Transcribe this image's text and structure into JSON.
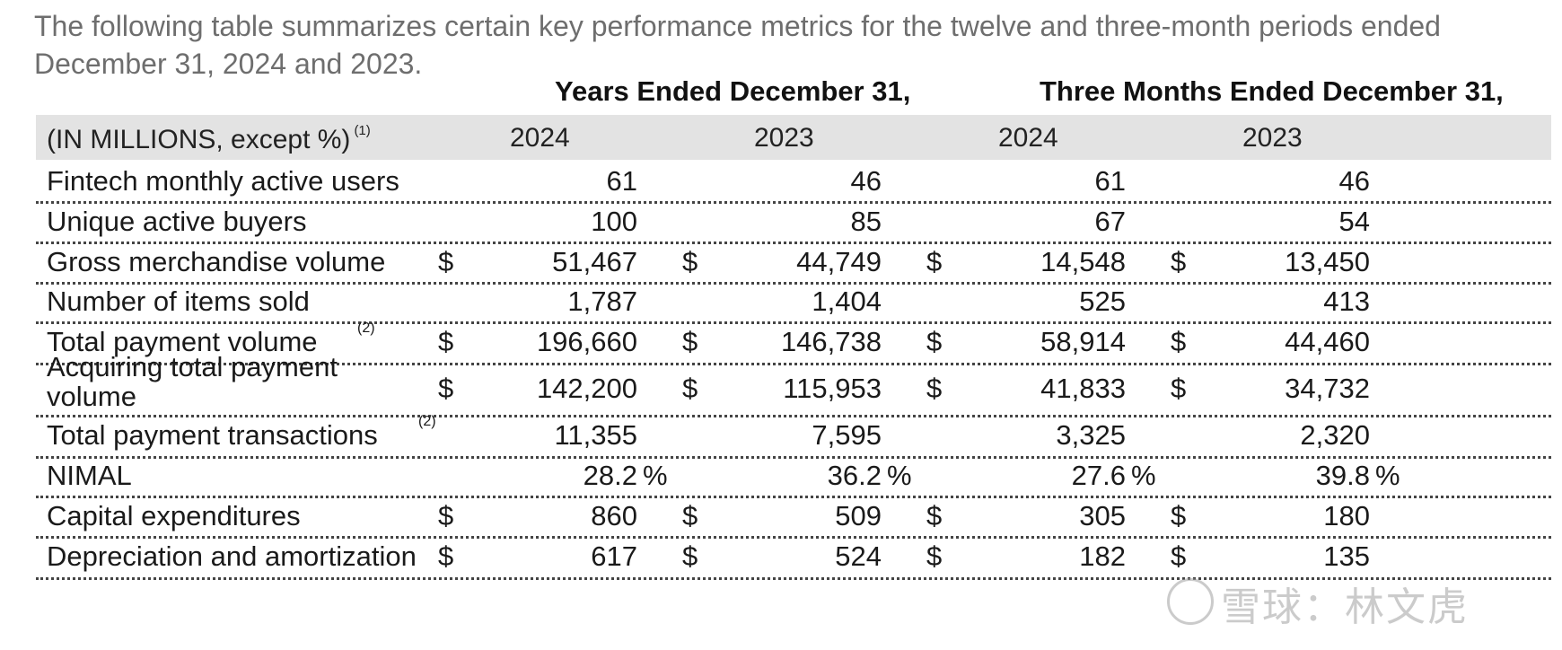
{
  "intro": "The following table summarizes certain key performance metrics for the twelve and three-month periods ended December 31, 2024 and 2023.",
  "headers": {
    "years": "Years Ended December 31,",
    "three_months": "Three Months Ended December 31,"
  },
  "columns": {
    "label": "(IN MILLIONS, except %)",
    "label_note": "(1)",
    "years": [
      "2024",
      "2023",
      "2024",
      "2023"
    ]
  },
  "rows": [
    {
      "label": "Fintech monthly active users",
      "note": "",
      "currency": false,
      "values": [
        "61",
        "46",
        "61",
        "46"
      ]
    },
    {
      "label": "Unique active buyers",
      "note": "",
      "currency": false,
      "values": [
        "100",
        "85",
        "67",
        "54"
      ]
    },
    {
      "label": "Gross merchandise volume",
      "note": "",
      "currency": true,
      "values": [
        "51,467",
        "44,749",
        "14,548",
        "13,450"
      ]
    },
    {
      "label": "Number of items sold",
      "note": "",
      "currency": false,
      "values": [
        "1,787",
        "1,404",
        "525",
        "413"
      ]
    },
    {
      "label": "Total payment volume",
      "note": "(2)",
      "currency": true,
      "values": [
        "196,660",
        "146,738",
        "58,914",
        "44,460"
      ]
    },
    {
      "label": "Acquiring total payment volume",
      "note": "",
      "currency": true,
      "values": [
        "142,200",
        "115,953",
        "41,833",
        "34,732"
      ]
    },
    {
      "label": "Total payment transactions",
      "note": "(2)",
      "currency": false,
      "values": [
        "11,355",
        "7,595",
        "3,325",
        "2,320"
      ]
    },
    {
      "label": "NIMAL",
      "note": "",
      "currency": false,
      "values": [
        "28.2",
        "36.2",
        "27.6",
        "39.8"
      ],
      "pct": true
    },
    {
      "label": "Capital expenditures",
      "note": "",
      "currency": true,
      "values": [
        "860",
        "509",
        "305",
        "180"
      ]
    },
    {
      "label": "Depreciation and amortization",
      "note": "",
      "currency": true,
      "values": [
        "617",
        "524",
        "182",
        "135"
      ]
    }
  ],
  "symbols": {
    "currency": "$",
    "percent": "%"
  },
  "watermark": "雪球：林文虎"
}
